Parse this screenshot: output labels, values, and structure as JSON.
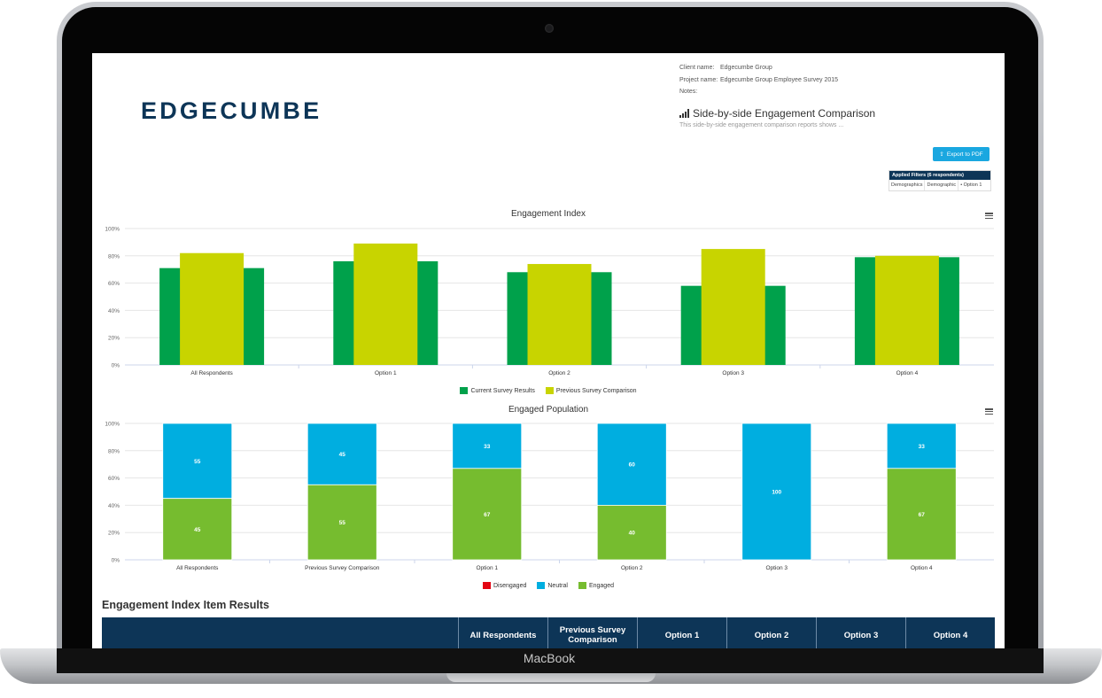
{
  "device": {
    "label": "MacBook"
  },
  "report": {
    "logo": "EDGECUMBE",
    "meta": [
      {
        "key": "Client name:",
        "value": "Edgecumbe Group"
      },
      {
        "key": "Project name:",
        "value": "Edgecumbe Group Employee Survey 2015"
      },
      {
        "key": "Notes:",
        "value": ""
      }
    ],
    "title": "Side-by-side Engagement Comparison",
    "subtitle": "This side-by-side engagement comparison reports shows ...",
    "export_label": "Export to PDF",
    "filters": {
      "header": "Applied Filters (6 respondents)",
      "cells": [
        "Demographics",
        "Demographic",
        "• Option 1"
      ]
    }
  },
  "colors": {
    "navy": "#0d3557",
    "current": "#00a14b",
    "previous": "#c8d400",
    "disengaged": "#e30613",
    "neutral": "#00aee0",
    "engaged": "#76bc2f"
  },
  "chart_data": [
    {
      "type": "bar",
      "title": "Engagement Index",
      "categories": [
        "All Respondents",
        "Option 1",
        "Option 2",
        "Option 3",
        "Option 4"
      ],
      "series": [
        {
          "name": "Current Survey Results",
          "values": [
            71,
            76,
            68,
            58,
            79
          ]
        },
        {
          "name": "Previous Survey Comparison",
          "values": [
            82,
            89,
            74,
            85,
            80
          ]
        }
      ],
      "yticks": [
        "0%",
        "20%",
        "40%",
        "60%",
        "80%",
        "100%"
      ],
      "ylim": [
        0,
        100
      ],
      "grid": true,
      "legend": "bottom-center"
    },
    {
      "type": "bar",
      "stacked": true,
      "title": "Engaged Population",
      "categories": [
        "All Respondents",
        "Previous Survey Comparison",
        "Option 1",
        "Option 2",
        "Option 3",
        "Option 4"
      ],
      "series": [
        {
          "name": "Disengaged",
          "values": [
            0,
            0,
            0,
            0,
            0,
            0
          ]
        },
        {
          "name": "Neutral",
          "values": [
            55,
            45,
            33,
            60,
            100,
            33
          ]
        },
        {
          "name": "Engaged",
          "values": [
            45,
            55,
            67,
            40,
            0,
            67
          ]
        }
      ],
      "yticks": [
        "0%",
        "20%",
        "40%",
        "60%",
        "80%",
        "100%"
      ],
      "ylim": [
        0,
        100
      ],
      "grid": true,
      "legend": "bottom-center"
    }
  ],
  "table": {
    "title": "Engagement Index Item Results",
    "headers": [
      "",
      "All Respondents",
      "Previous Survey Comparison",
      "Option 1",
      "Option 2",
      "Option 3",
      "Option 4"
    ]
  }
}
